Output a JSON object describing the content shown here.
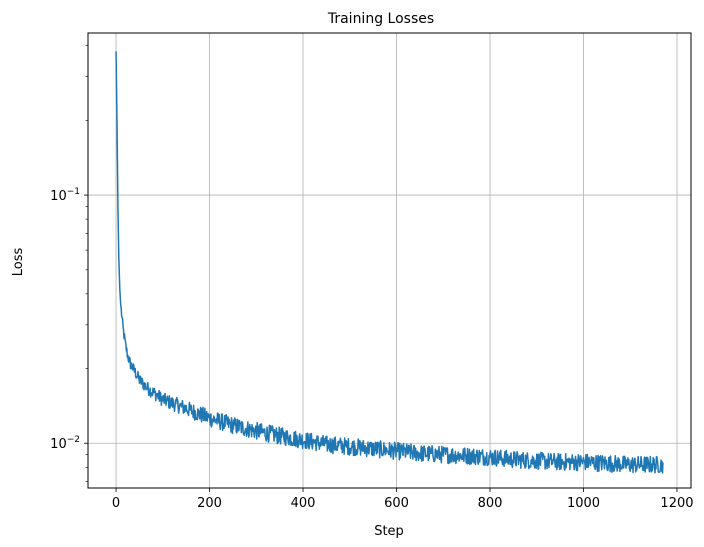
{
  "chart_data": {
    "type": "line",
    "title": "Training Losses",
    "xlabel": "Step",
    "ylabel": "Loss",
    "yscale": "log",
    "xlim": [
      -60,
      1230
    ],
    "ylim": [
      0.0066,
      0.45
    ],
    "grid": true,
    "x_ticks": [
      {
        "value": 0,
        "label": "0"
      },
      {
        "value": 200,
        "label": "200"
      },
      {
        "value": 400,
        "label": "400"
      },
      {
        "value": 600,
        "label": "600"
      },
      {
        "value": 800,
        "label": "800"
      },
      {
        "value": 1000,
        "label": "1000"
      },
      {
        "value": 1200,
        "label": "1200"
      }
    ],
    "y_major_ticks": [
      {
        "value": 0.01,
        "base": "10",
        "exp": "−2"
      },
      {
        "value": 0.1,
        "base": "10",
        "exp": "−1"
      }
    ],
    "y_minor_ticks": [
      0.007,
      0.008,
      0.009,
      0.02,
      0.03,
      0.04,
      0.05,
      0.06,
      0.07,
      0.08,
      0.09,
      0.2,
      0.3,
      0.4
    ],
    "series": [
      {
        "color": "#1f77b4",
        "noise": 0.035,
        "points": [
          [
            0,
            0.38
          ],
          [
            2,
            0.2
          ],
          [
            4,
            0.09
          ],
          [
            6,
            0.055
          ],
          [
            8,
            0.042
          ],
          [
            10,
            0.036
          ],
          [
            15,
            0.029
          ],
          [
            20,
            0.025
          ],
          [
            25,
            0.0225
          ],
          [
            30,
            0.021
          ],
          [
            40,
            0.0195
          ],
          [
            50,
            0.018
          ],
          [
            60,
            0.0172
          ],
          [
            70,
            0.0165
          ],
          [
            80,
            0.016
          ],
          [
            100,
            0.015
          ],
          [
            120,
            0.0145
          ],
          [
            150,
            0.0138
          ],
          [
            200,
            0.0126
          ],
          [
            250,
            0.0118
          ],
          [
            300,
            0.0112
          ],
          [
            350,
            0.0107
          ],
          [
            400,
            0.0103
          ],
          [
            450,
            0.0099
          ],
          [
            500,
            0.0097
          ],
          [
            550,
            0.0095
          ],
          [
            600,
            0.0093
          ],
          [
            650,
            0.0091
          ],
          [
            700,
            0.009
          ],
          [
            750,
            0.0089
          ],
          [
            800,
            0.0088
          ],
          [
            850,
            0.0086
          ],
          [
            900,
            0.0085
          ],
          [
            950,
            0.0084
          ],
          [
            1000,
            0.0084
          ],
          [
            1050,
            0.0083
          ],
          [
            1100,
            0.0082
          ],
          [
            1150,
            0.0082
          ],
          [
            1170,
            0.0082
          ]
        ]
      }
    ]
  }
}
